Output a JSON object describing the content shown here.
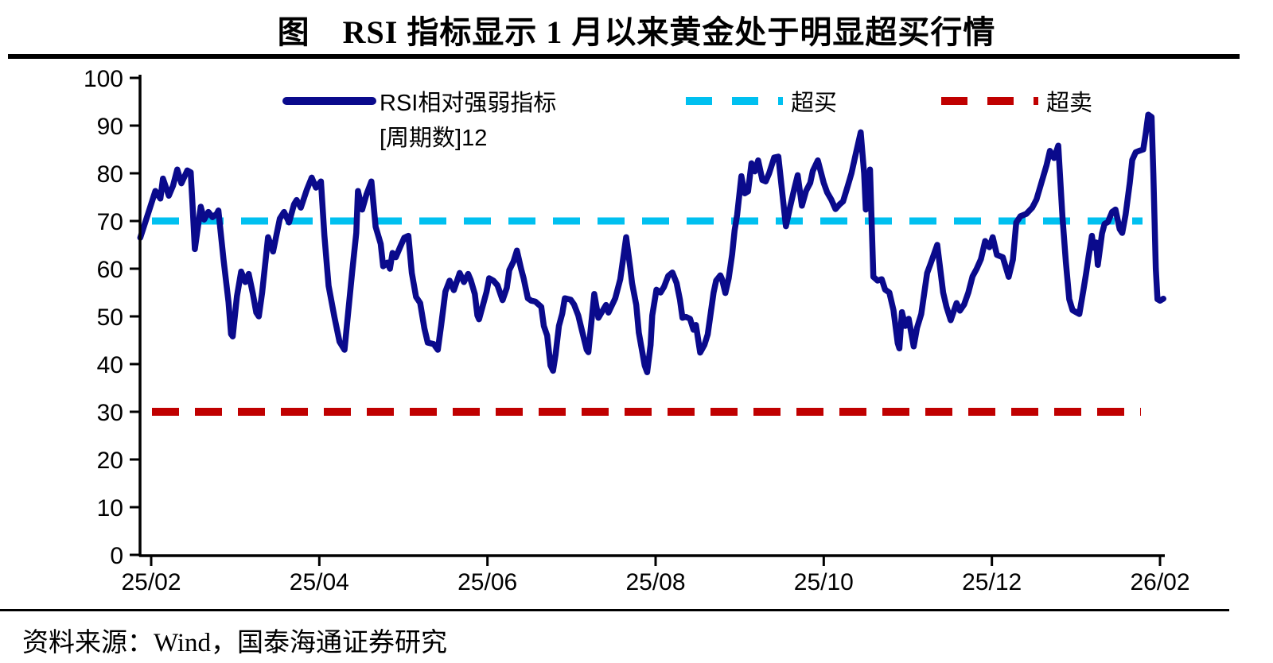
{
  "title": "图　RSI 指标显示 1 月以来黄金处于明显超买行情",
  "source": "资料来源：Wind，国泰海通证券研究",
  "legend": {
    "rsi_label_line1": "RSI相对强弱指标",
    "rsi_label_line2": "[周期数]12",
    "overbought_label": "超买",
    "oversold_label": "超卖"
  },
  "colors": {
    "rsi_line": "#0a0a8c",
    "overbought_line": "#00c0f0",
    "oversold_line": "#c00000",
    "axis": "#000000"
  },
  "chart_data": {
    "type": "line",
    "title": "图　RSI 指标显示 1 月以来黄金处于明显超买行情",
    "xlabel": "",
    "ylabel": "",
    "ylim": [
      0,
      100
    ],
    "y_ticks": [
      0,
      10,
      20,
      30,
      40,
      50,
      60,
      70,
      80,
      90,
      100
    ],
    "x_tick_labels": [
      "25/02",
      "25/04",
      "25/06",
      "25/08",
      "25/10",
      "25/12",
      "26/02"
    ],
    "x_tick_months": [
      0,
      2,
      4,
      6,
      8,
      10,
      12
    ],
    "grid": false,
    "legend_position": "top",
    "overbought_level": 70,
    "oversold_level": 30,
    "series": [
      {
        "name": "RSI相对强弱指标[周期数]12",
        "x_unit": "months_after_2025_02",
        "points": [
          [
            -0.13,
            66.5
          ],
          [
            -0.03,
            71.9
          ],
          [
            0.05,
            76.3
          ],
          [
            0.11,
            74.7
          ],
          [
            0.14,
            78.9
          ],
          [
            0.21,
            75.3
          ],
          [
            0.26,
            77.4
          ],
          [
            0.31,
            80.8
          ],
          [
            0.36,
            77.9
          ],
          [
            0.43,
            80.6
          ],
          [
            0.47,
            80.2
          ],
          [
            0.49,
            74.0
          ],
          [
            0.52,
            64.1
          ],
          [
            0.59,
            73.0
          ],
          [
            0.63,
            70.3
          ],
          [
            0.68,
            71.9
          ],
          [
            0.73,
            70.8
          ],
          [
            0.78,
            71.5
          ],
          [
            0.8,
            72.2
          ],
          [
            0.86,
            62.0
          ],
          [
            0.92,
            53.0
          ],
          [
            0.95,
            46.3
          ],
          [
            0.97,
            45.8
          ],
          [
            1.02,
            54.2
          ],
          [
            1.07,
            59.4
          ],
          [
            1.12,
            57.2
          ],
          [
            1.16,
            58.9
          ],
          [
            1.21,
            54.7
          ],
          [
            1.25,
            50.8
          ],
          [
            1.28,
            50.0
          ],
          [
            1.32,
            55.0
          ],
          [
            1.39,
            66.6
          ],
          [
            1.45,
            63.6
          ],
          [
            1.53,
            70.5
          ],
          [
            1.58,
            71.9
          ],
          [
            1.64,
            69.7
          ],
          [
            1.7,
            73.5
          ],
          [
            1.73,
            74.4
          ],
          [
            1.78,
            72.8
          ],
          [
            1.85,
            76.5
          ],
          [
            1.91,
            79.1
          ],
          [
            1.96,
            77.0
          ],
          [
            2.02,
            78.3
          ],
          [
            2.06,
            67.0
          ],
          [
            2.11,
            56.4
          ],
          [
            2.18,
            49.8
          ],
          [
            2.24,
            44.7
          ],
          [
            2.3,
            43.0
          ],
          [
            2.35,
            52.0
          ],
          [
            2.39,
            59.1
          ],
          [
            2.44,
            67.5
          ],
          [
            2.46,
            76.3
          ],
          [
            2.51,
            72.4
          ],
          [
            2.56,
            75.5
          ],
          [
            2.62,
            78.3
          ],
          [
            2.67,
            68.8
          ],
          [
            2.73,
            65.2
          ],
          [
            2.76,
            60.5
          ],
          [
            2.81,
            61.3
          ],
          [
            2.84,
            60.0
          ],
          [
            2.87,
            63.3
          ],
          [
            2.91,
            62.4
          ],
          [
            2.96,
            64.5
          ],
          [
            3.01,
            66.5
          ],
          [
            3.06,
            66.9
          ],
          [
            3.1,
            59.1
          ],
          [
            3.15,
            54.1
          ],
          [
            3.2,
            52.8
          ],
          [
            3.25,
            47.5
          ],
          [
            3.29,
            44.5
          ],
          [
            3.36,
            44.2
          ],
          [
            3.41,
            43.0
          ],
          [
            3.45,
            48.3
          ],
          [
            3.5,
            55.2
          ],
          [
            3.55,
            57.5
          ],
          [
            3.6,
            55.5
          ],
          [
            3.67,
            59.1
          ],
          [
            3.72,
            57.2
          ],
          [
            3.77,
            58.9
          ],
          [
            3.8,
            57.7
          ],
          [
            3.85,
            54.7
          ],
          [
            3.88,
            50.2
          ],
          [
            3.9,
            49.4
          ],
          [
            3.95,
            52.6
          ],
          [
            3.99,
            55.2
          ],
          [
            4.02,
            58.0
          ],
          [
            4.07,
            57.5
          ],
          [
            4.12,
            56.5
          ],
          [
            4.18,
            53.4
          ],
          [
            4.23,
            56.0
          ],
          [
            4.26,
            59.7
          ],
          [
            4.31,
            61.5
          ],
          [
            4.35,
            63.8
          ],
          [
            4.4,
            60.0
          ],
          [
            4.43,
            58.0
          ],
          [
            4.48,
            53.8
          ],
          [
            4.52,
            53.3
          ],
          [
            4.57,
            53.1
          ],
          [
            4.64,
            52.0
          ],
          [
            4.67,
            48.0
          ],
          [
            4.71,
            46.0
          ],
          [
            4.75,
            39.7
          ],
          [
            4.78,
            38.6
          ],
          [
            4.81,
            42.0
          ],
          [
            4.85,
            48.0
          ],
          [
            4.89,
            50.6
          ],
          [
            4.92,
            53.8
          ],
          [
            4.99,
            53.5
          ],
          [
            5.03,
            52.5
          ],
          [
            5.08,
            50.2
          ],
          [
            5.11,
            48.0
          ],
          [
            5.18,
            43.0
          ],
          [
            5.2,
            42.5
          ],
          [
            5.27,
            54.7
          ],
          [
            5.32,
            49.7
          ],
          [
            5.41,
            52.4
          ],
          [
            5.44,
            50.8
          ],
          [
            5.52,
            53.8
          ],
          [
            5.58,
            57.8
          ],
          [
            5.65,
            66.6
          ],
          [
            5.7,
            60.0
          ],
          [
            5.72,
            57.0
          ],
          [
            5.77,
            52.4
          ],
          [
            5.8,
            46.6
          ],
          [
            5.87,
            39.7
          ],
          [
            5.9,
            38.3
          ],
          [
            5.94,
            44.0
          ],
          [
            5.96,
            50.2
          ],
          [
            6.01,
            55.6
          ],
          [
            6.06,
            55.0
          ],
          [
            6.1,
            56.2
          ],
          [
            6.15,
            58.5
          ],
          [
            6.2,
            59.2
          ],
          [
            6.25,
            57.0
          ],
          [
            6.29,
            53.5
          ],
          [
            6.32,
            49.7
          ],
          [
            6.36,
            49.9
          ],
          [
            6.41,
            49.5
          ],
          [
            6.45,
            47.2
          ],
          [
            6.48,
            48.2
          ],
          [
            6.53,
            42.4
          ],
          [
            6.58,
            44.0
          ],
          [
            6.62,
            46.2
          ],
          [
            6.65,
            50.0
          ],
          [
            6.69,
            55.0
          ],
          [
            6.72,
            57.5
          ],
          [
            6.77,
            58.6
          ],
          [
            6.79,
            57.8
          ],
          [
            6.83,
            54.9
          ],
          [
            6.87,
            58.0
          ],
          [
            6.91,
            63.0
          ],
          [
            6.94,
            68.0
          ],
          [
            6.97,
            71.3
          ],
          [
            7.02,
            79.4
          ],
          [
            7.06,
            75.8
          ],
          [
            7.1,
            76.2
          ],
          [
            7.14,
            82.1
          ],
          [
            7.18,
            80.4
          ],
          [
            7.22,
            82.7
          ],
          [
            7.27,
            78.6
          ],
          [
            7.31,
            78.3
          ],
          [
            7.35,
            80.0
          ],
          [
            7.41,
            83.3
          ],
          [
            7.46,
            83.5
          ],
          [
            7.5,
            77.0
          ],
          [
            7.55,
            68.9
          ],
          [
            7.6,
            73.0
          ],
          [
            7.65,
            76.8
          ],
          [
            7.69,
            79.6
          ],
          [
            7.74,
            73.2
          ],
          [
            7.79,
            76.3
          ],
          [
            7.84,
            78.0
          ],
          [
            7.87,
            80.5
          ],
          [
            7.93,
            82.7
          ],
          [
            8.0,
            78.0
          ],
          [
            8.04,
            76.0
          ],
          [
            8.09,
            74.5
          ],
          [
            8.14,
            72.5
          ],
          [
            8.19,
            73.5
          ],
          [
            8.23,
            74.1
          ],
          [
            8.28,
            77.0
          ],
          [
            8.33,
            80.0
          ],
          [
            8.38,
            84.0
          ],
          [
            8.44,
            88.6
          ],
          [
            8.48,
            80.0
          ],
          [
            8.5,
            72.4
          ],
          [
            8.55,
            80.8
          ],
          [
            8.59,
            58.3
          ],
          [
            8.64,
            57.5
          ],
          [
            8.69,
            57.8
          ],
          [
            8.73,
            55.6
          ],
          [
            8.78,
            55.0
          ],
          [
            8.83,
            51.3
          ],
          [
            8.88,
            44.4
          ],
          [
            8.9,
            43.3
          ],
          [
            8.93,
            50.9
          ],
          [
            8.97,
            48.0
          ],
          [
            9.01,
            49.5
          ],
          [
            9.07,
            43.7
          ],
          [
            9.11,
            47.6
          ],
          [
            9.16,
            50.5
          ],
          [
            9.23,
            59.1
          ],
          [
            9.27,
            61.0
          ],
          [
            9.35,
            65.0
          ],
          [
            9.42,
            55.0
          ],
          [
            9.46,
            52.0
          ],
          [
            9.51,
            49.2
          ],
          [
            9.58,
            52.8
          ],
          [
            9.62,
            51.2
          ],
          [
            9.67,
            52.5
          ],
          [
            9.72,
            55.0
          ],
          [
            9.77,
            58.4
          ],
          [
            9.82,
            60.0
          ],
          [
            9.87,
            62.0
          ],
          [
            9.92,
            65.8
          ],
          [
            9.97,
            64.5
          ],
          [
            10.01,
            66.6
          ],
          [
            10.06,
            62.9
          ],
          [
            10.13,
            62.4
          ],
          [
            10.2,
            58.3
          ],
          [
            10.25,
            61.9
          ],
          [
            10.29,
            69.7
          ],
          [
            10.34,
            71.0
          ],
          [
            10.41,
            71.5
          ],
          [
            10.48,
            72.8
          ],
          [
            10.53,
            74.5
          ],
          [
            10.58,
            77.5
          ],
          [
            10.65,
            81.7
          ],
          [
            10.69,
            84.7
          ],
          [
            10.74,
            83.2
          ],
          [
            10.79,
            85.8
          ],
          [
            10.84,
            70.8
          ],
          [
            10.88,
            61.3
          ],
          [
            10.92,
            53.6
          ],
          [
            10.96,
            51.3
          ],
          [
            11.01,
            50.8
          ],
          [
            11.04,
            50.5
          ],
          [
            11.09,
            55.6
          ],
          [
            11.12,
            58.9
          ],
          [
            11.15,
            62.5
          ],
          [
            11.19,
            66.9
          ],
          [
            11.21,
            64.4
          ],
          [
            11.24,
            65.5
          ],
          [
            11.26,
            60.8
          ],
          [
            11.31,
            67.4
          ],
          [
            11.34,
            69.4
          ],
          [
            11.38,
            69.8
          ],
          [
            11.43,
            71.9
          ],
          [
            11.47,
            72.4
          ],
          [
            11.52,
            68.3
          ],
          [
            11.55,
            67.5
          ],
          [
            11.59,
            71.3
          ],
          [
            11.64,
            78.0
          ],
          [
            11.67,
            82.8
          ],
          [
            11.71,
            84.4
          ],
          [
            11.75,
            84.7
          ],
          [
            11.8,
            85.0
          ],
          [
            11.83,
            88.3
          ],
          [
            11.86,
            92.3
          ],
          [
            11.9,
            91.8
          ],
          [
            11.92,
            80.0
          ],
          [
            11.95,
            60.0
          ],
          [
            11.97,
            53.6
          ],
          [
            12.0,
            53.3
          ],
          [
            12.04,
            53.7
          ]
        ]
      }
    ]
  }
}
